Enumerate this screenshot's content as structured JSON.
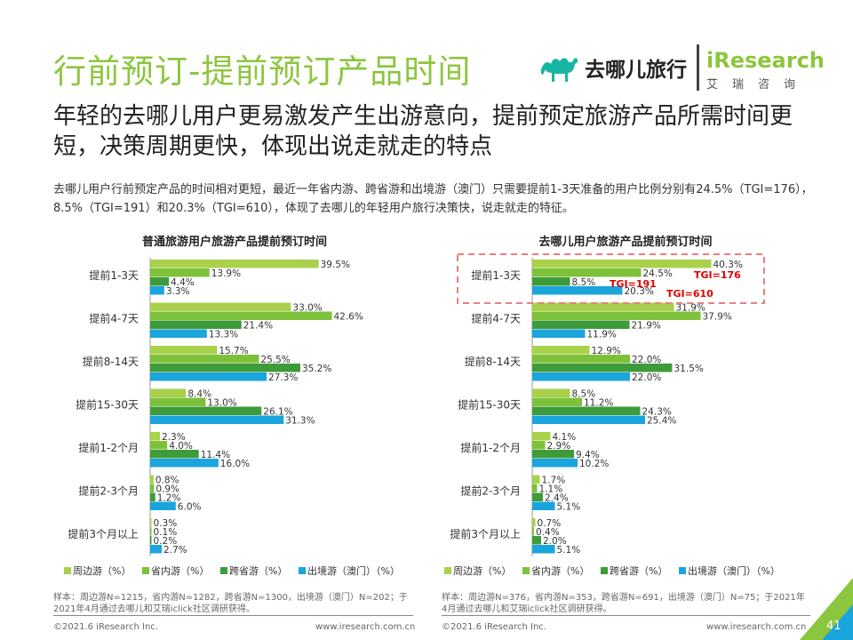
{
  "page": {
    "title": "行前预订-提前预订产品时间",
    "headline": "年轻的去哪儿用户更易激发产生出游意向，提前预定旅游产品所需时间更短，决策周期更快，体现出说走就走的特点",
    "description": "去哪儿用户行前预定产品的时间相对更短，最近一年省内游、跨省游和出境游（澳门）只需要提前1-3天准备的用户比例分别有24.5%（TGI=176），8.5%（TGI=191）和20.3%（TGI=610），体现了去哪儿的年轻用户旅行决策快，说走就走的特征。",
    "page_number": "41"
  },
  "logos": {
    "qunar": "去哪儿旅行",
    "iresearch": "iResearch",
    "iresearch_sub": "艾瑞咨询"
  },
  "colors": {
    "title_green": "#8cc63e",
    "series": [
      "#a9d14b",
      "#7dc13b",
      "#3e9b3a",
      "#1aa5dc"
    ],
    "highlight_box": "#e88080",
    "tgi_text": "#e00000"
  },
  "chart_data": [
    {
      "type": "bar",
      "orientation": "horizontal",
      "title": "普通旅游用户旅游产品提前预订时间",
      "categories": [
        "提前1-3天",
        "提前4-7天",
        "提前8-14天",
        "提前15-30天",
        "提前1-2个月",
        "提前2-3个月",
        "提前3个月以上"
      ],
      "series": [
        {
          "name": "周边游（%）",
          "values": [
            39.5,
            33.0,
            15.7,
            8.4,
            2.3,
            0.8,
            0.3
          ]
        },
        {
          "name": "省内游（%）",
          "values": [
            13.9,
            42.6,
            25.5,
            13.0,
            4.0,
            0.9,
            0.1
          ]
        },
        {
          "name": "跨省游（%）",
          "values": [
            4.4,
            21.4,
            35.2,
            26.1,
            11.4,
            1.2,
            0.2
          ]
        },
        {
          "name": "出境游（澳门）（%）",
          "values": [
            3.3,
            13.3,
            27.3,
            31.3,
            16.0,
            6.0,
            2.7
          ]
        }
      ],
      "annotations": [],
      "footnote": "样本：周边游N=1215，省内游N=1282，跨省游N=1300，出境游（澳门）N=202；于2021年4月通过去哪儿和艾瑞iclick社区调研获得。",
      "copyright": "©2021.6 iResearch Inc.",
      "website": "www.iresearch.com.cn"
    },
    {
      "type": "bar",
      "orientation": "horizontal",
      "title": "去哪儿用户旅游产品提前预订时间",
      "categories": [
        "提前1-3天",
        "提前4-7天",
        "提前8-14天",
        "提前15-30天",
        "提前1-2个月",
        "提前2-3个月",
        "提前3个月以上"
      ],
      "series": [
        {
          "name": "周边游（%）",
          "values": [
            40.3,
            31.9,
            12.9,
            8.5,
            4.1,
            1.7,
            0.7
          ]
        },
        {
          "name": "省内游（%）",
          "values": [
            24.5,
            37.9,
            22.0,
            11.2,
            2.9,
            1.1,
            0.4
          ]
        },
        {
          "name": "跨省游（%）",
          "values": [
            8.5,
            21.9,
            31.5,
            24.3,
            9.4,
            2.4,
            2.0
          ]
        },
        {
          "name": "出境游（澳门）（%）",
          "values": [
            20.3,
            11.9,
            22.0,
            25.4,
            10.2,
            5.1,
            5.1
          ]
        }
      ],
      "annotations": [
        "TGI=176",
        "TGI=191",
        "TGI=610"
      ],
      "footnote": "样本：周边游N=376，省内游N=353，跨省游N=691，出境游（澳门）N=75；于2021年4月通过去哪儿和艾瑞iclick社区调研获得。",
      "copyright": "©2021.6 iResearch Inc.",
      "website": "www.iresearch.com.cn"
    }
  ]
}
